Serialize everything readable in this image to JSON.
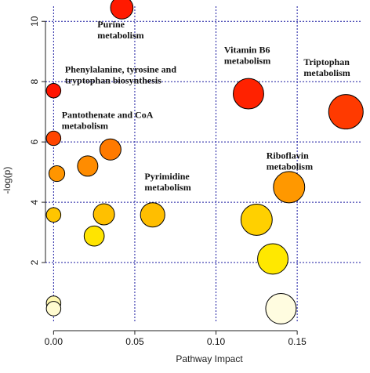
{
  "chart_data": {
    "type": "scatter",
    "title": "",
    "xlabel": "Pathway Impact",
    "ylabel": "-log(p)",
    "xlim": [
      -0.005,
      0.19
    ],
    "ylim": [
      0,
      10.5
    ],
    "xticks": [
      0.0,
      0.05,
      0.1,
      0.15
    ],
    "xtick_labels": [
      "0.00",
      "0.05",
      "0.10",
      "0.15"
    ],
    "yticks": [
      2,
      4,
      6,
      8,
      10
    ],
    "ytick_labels": [
      "2",
      "4",
      "6",
      "8",
      "10"
    ],
    "grid": true,
    "grid_style": "dotted",
    "grid_color": "#1a1aa0",
    "color_scale": [
      "#fffde0",
      "#ffd400",
      "#ff9a00",
      "#ff3000",
      "#ff0000"
    ],
    "points": [
      {
        "x": 0.042,
        "y": 10.45,
        "size": 0.55,
        "color": "#ff1a00"
      },
      {
        "x": 0.0,
        "y": 7.7,
        "size": 0.25,
        "color": "#ff1500"
      },
      {
        "x": 0.12,
        "y": 7.6,
        "size": 0.85,
        "color": "#ff2200"
      },
      {
        "x": 0.18,
        "y": 7.0,
        "size": 1.0,
        "color": "#ff3a00"
      },
      {
        "x": 0.0,
        "y": 6.12,
        "size": 0.25,
        "color": "#ff4500"
      },
      {
        "x": 0.035,
        "y": 5.75,
        "size": 0.5,
        "color": "#ff7a00"
      },
      {
        "x": 0.021,
        "y": 5.2,
        "size": 0.47,
        "color": "#ff8c00"
      },
      {
        "x": 0.002,
        "y": 4.95,
        "size": 0.3,
        "color": "#ff9500"
      },
      {
        "x": 0.145,
        "y": 4.5,
        "size": 0.88,
        "color": "#ff9800"
      },
      {
        "x": 0.061,
        "y": 3.58,
        "size": 0.62,
        "color": "#ffbe00"
      },
      {
        "x": 0.031,
        "y": 3.6,
        "size": 0.5,
        "color": "#ffc000"
      },
      {
        "x": 0.0,
        "y": 3.58,
        "size": 0.25,
        "color": "#ffc500"
      },
      {
        "x": 0.125,
        "y": 3.42,
        "size": 0.88,
        "color": "#ffd000"
      },
      {
        "x": 0.025,
        "y": 2.88,
        "size": 0.46,
        "color": "#ffe400"
      },
      {
        "x": 0.135,
        "y": 2.12,
        "size": 0.85,
        "color": "#ffe800"
      },
      {
        "x": 0.0,
        "y": 0.65,
        "size": 0.25,
        "color": "#fff8b0"
      },
      {
        "x": 0.0,
        "y": 0.47,
        "size": 0.25,
        "color": "#fffbd0"
      },
      {
        "x": 0.14,
        "y": 0.47,
        "size": 0.85,
        "color": "#fffce0"
      }
    ],
    "annotations": [
      {
        "lines": [
          "Purine",
          "metabolism"
        ],
        "x": 0.027,
        "y": 9.8
      },
      {
        "lines": [
          "Phenylalanine, tyrosine and",
          "tryptophan biosynthesis"
        ],
        "x": 0.007,
        "y": 8.3
      },
      {
        "lines": [
          "Pantothenate and CoA",
          "metabolism"
        ],
        "x": 0.005,
        "y": 6.8
      },
      {
        "lines": [
          "Vitamin B6",
          "metabolism"
        ],
        "x": 0.105,
        "y": 8.95
      },
      {
        "lines": [
          "Triptophan",
          "metabolism"
        ],
        "x": 0.154,
        "y": 8.55
      },
      {
        "lines": [
          "Riboflavin",
          "metabolism"
        ],
        "x": 0.131,
        "y": 5.45
      },
      {
        "lines": [
          "Pyrimidine",
          "metabolism"
        ],
        "x": 0.056,
        "y": 4.75
      }
    ]
  }
}
